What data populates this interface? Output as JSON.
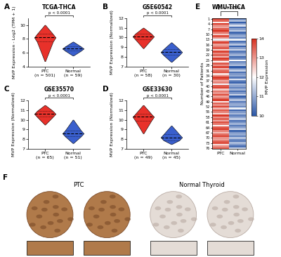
{
  "chart_data": [
    {
      "panel": "A",
      "type": "violin",
      "title": "TCGA-THCA",
      "annotation": "p < 0.0001",
      "y_label": "MVP Expression - Log2 (TPM + 1)",
      "categories": [
        "PTC\n(n = 501)",
        "Normal\n(n = 59)"
      ],
      "colors": [
        "#e8312a",
        "#3a5fcd"
      ],
      "min": [
        4.8,
        5.6
      ],
      "q1": [
        7.6,
        6.3
      ],
      "median": [
        8.2,
        6.6
      ],
      "q3": [
        8.7,
        6.9
      ],
      "max": [
        10.0,
        7.6
      ],
      "ylim": [
        4,
        11
      ],
      "yticks": [
        4,
        6,
        8,
        10
      ]
    },
    {
      "panel": "B",
      "type": "violin",
      "title": "GSE60542",
      "annotation": "p < 0.0001",
      "y_label": "MVP Expression (Normalized)",
      "categories": [
        "PTC\n(n = 58)",
        "Normal\n(n = 30)"
      ],
      "colors": [
        "#e8312a",
        "#3a5fcd"
      ],
      "min": [
        8.9,
        7.5
      ],
      "q1": [
        9.8,
        8.2
      ],
      "median": [
        10.1,
        8.5
      ],
      "q3": [
        10.4,
        8.8
      ],
      "max": [
        11.0,
        9.5
      ],
      "ylim": [
        7,
        12
      ],
      "yticks": [
        7,
        8,
        9,
        10,
        11,
        12
      ]
    },
    {
      "panel": "C",
      "type": "violin",
      "title": "GSE35570",
      "annotation": "p < 0.0001",
      "y_label": "MVP Expression (Normalized)",
      "categories": [
        "PTC\n(n = 65)",
        "Normal\n(n = 51)"
      ],
      "colors": [
        "#e8312a",
        "#3a5fcd"
      ],
      "min": [
        9.5,
        7.6
      ],
      "q1": [
        10.3,
        8.3
      ],
      "median": [
        10.6,
        8.6
      ],
      "q3": [
        10.9,
        8.9
      ],
      "max": [
        11.5,
        10.0
      ],
      "ylim": [
        7,
        12
      ],
      "yticks": [
        7,
        8,
        9,
        10,
        11,
        12
      ]
    },
    {
      "panel": "D",
      "type": "violin",
      "title": "GSE33630",
      "annotation": "p < 0.0001",
      "y_label": "MVP Expression (Normalized)",
      "categories": [
        "PTC\n(n = 49)",
        "Normal\n(n = 45)"
      ],
      "colors": [
        "#e8312a",
        "#3a5fcd"
      ],
      "min": [
        8.6,
        7.5
      ],
      "q1": [
        9.9,
        7.9
      ],
      "median": [
        10.3,
        8.2
      ],
      "q3": [
        10.6,
        8.5
      ],
      "max": [
        11.5,
        9.4
      ],
      "ylim": [
        7,
        12
      ],
      "yticks": [
        7,
        8,
        9,
        10,
        11,
        12
      ]
    },
    {
      "panel": "E",
      "type": "heatmap",
      "title": "WMU-THCA",
      "annotation": "p < 0.0001",
      "y_label": "Number of Patients",
      "categories": [
        "PTC",
        "Normal"
      ],
      "series": [
        {
          "name": "PTC",
          "values": [
            13.8,
            13.5,
            12.2,
            13.9,
            13.1,
            12.8,
            13.6,
            14.0,
            13.3,
            12.5,
            13.7,
            13.0,
            11.8,
            13.4,
            13.9,
            12.9,
            13.2,
            13.6,
            12.4,
            13.8,
            13.1,
            13.5,
            12.7,
            13.9,
            13.3,
            12.0,
            13.6,
            13.0,
            13.8,
            12.6,
            13.4,
            13.7,
            12.3,
            13.1,
            13.9,
            13.5,
            12.8,
            13.2,
            11.9,
            13.6,
            13.8,
            12.5,
            13.3,
            13.0,
            13.7,
            12.9,
            13.4,
            13.9,
            12.2,
            13.5,
            13.1,
            13.8,
            12.7,
            13.6,
            13.2,
            12.4,
            13.9,
            13.0,
            13.5,
            12.8,
            13.7,
            13.3,
            12.1,
            13.6,
            13.9,
            13.2,
            12.6,
            13.4,
            13.8,
            13.0,
            12.9,
            13.5,
            13.7,
            12.3,
            13.1,
            13.6
          ]
        },
        {
          "name": "Normal",
          "values": [
            10.4,
            11.2,
            10.1,
            10.8,
            11.6,
            10.3,
            10.9,
            11.4,
            10.2,
            10.7,
            11.0,
            10.5,
            11.8,
            10.3,
            10.6,
            11.3,
            10.1,
            10.9,
            11.5,
            10.4,
            10.8,
            11.1,
            10.2,
            10.6,
            12.0,
            10.5,
            10.9,
            11.3,
            10.0,
            10.7,
            11.4,
            10.3,
            10.8,
            11.0,
            10.4,
            11.7,
            10.6,
            10.2,
            11.2,
            10.9,
            10.5,
            11.1,
            10.3,
            10.8,
            11.5,
            10.1,
            10.7,
            11.3,
            10.4,
            10.9,
            11.0,
            10.6,
            11.8,
            10.2,
            10.8,
            11.2,
            10.5,
            10.9,
            11.4,
            10.3,
            10.7,
            11.1,
            10.4,
            10.9,
            11.6,
            10.2,
            10.8,
            11.0,
            10.5,
            11.3,
            10.6,
            10.4,
            11.2,
            10.8,
            10.3,
            11.5
          ]
        }
      ],
      "ylim": [
        76.5,
        0.5
      ],
      "yticks": [
        1,
        4,
        7,
        10,
        13,
        16,
        19,
        22,
        25,
        28,
        31,
        34,
        37,
        40,
        43,
        46,
        49,
        52,
        55,
        58,
        61,
        64,
        67,
        70,
        73,
        76
      ],
      "colorbar": {
        "label": "MVP Expression",
        "range": [
          10,
          14
        ],
        "ticks": [
          10,
          11,
          12,
          13,
          14
        ],
        "colors": [
          "#2b57a7",
          "#ffffff",
          "#d7301f"
        ]
      }
    },
    {
      "panel": "F",
      "type": "image",
      "titles": [
        "PTC",
        "Normal Thyroid"
      ]
    }
  ]
}
